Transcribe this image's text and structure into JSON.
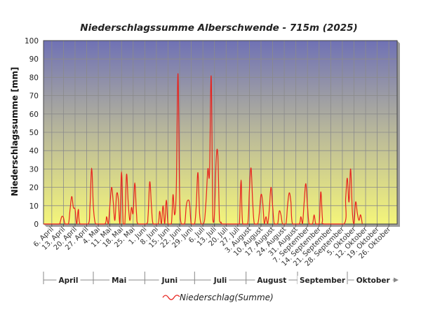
{
  "chart_data": {
    "type": "line",
    "title": "Niederschlagssumme Alberschwende - 715m (2025)",
    "ylabel": "Niederschlagssumme [mm]",
    "xlabel": "",
    "ylim": [
      0,
      100
    ],
    "yticks": [
      0,
      10,
      20,
      30,
      40,
      50,
      60,
      70,
      80,
      90,
      100
    ],
    "grid": true,
    "legend_position": "bottom-center",
    "colors": {
      "line": "#e8231e",
      "bg_top": "#6f71b5",
      "bg_bottom": "#f4f57a",
      "grid": "#8a8a8a"
    },
    "xrange": [
      "2025-04-01",
      "2025-10-31"
    ],
    "x_tick_labels": [
      {
        "date": "2025-04-06",
        "label": "6. April"
      },
      {
        "date": "2025-04-13",
        "label": "13. April"
      },
      {
        "date": "2025-04-20",
        "label": "20. April"
      },
      {
        "date": "2025-04-27",
        "label": "27. April"
      },
      {
        "date": "2025-05-04",
        "label": "4. Mai"
      },
      {
        "date": "2025-05-11",
        "label": "11. Mai"
      },
      {
        "date": "2025-05-18",
        "label": "18. Mai"
      },
      {
        "date": "2025-05-25",
        "label": "25. Mai"
      },
      {
        "date": "2025-06-01",
        "label": "1. Juni"
      },
      {
        "date": "2025-06-08",
        "label": "8. Juni"
      },
      {
        "date": "2025-06-15",
        "label": "15. Juni"
      },
      {
        "date": "2025-06-22",
        "label": "22. Juni"
      },
      {
        "date": "2025-06-29",
        "label": "29. Juni"
      },
      {
        "date": "2025-07-06",
        "label": "6. Juli"
      },
      {
        "date": "2025-07-13",
        "label": "13. Juli"
      },
      {
        "date": "2025-07-20",
        "label": "20. Juli"
      },
      {
        "date": "2025-07-27",
        "label": "27. Juli"
      },
      {
        "date": "2025-08-03",
        "label": "3. August"
      },
      {
        "date": "2025-08-10",
        "label": "10. August"
      },
      {
        "date": "2025-08-17",
        "label": "17. August"
      },
      {
        "date": "2025-08-24",
        "label": "24. August"
      },
      {
        "date": "2025-08-31",
        "label": "31. August"
      },
      {
        "date": "2025-09-07",
        "label": "7. September"
      },
      {
        "date": "2025-09-14",
        "label": "14. September"
      },
      {
        "date": "2025-09-21",
        "label": "21. September"
      },
      {
        "date": "2025-09-28",
        "label": "28. September"
      },
      {
        "date": "2025-10-05",
        "label": "5. Oktober"
      },
      {
        "date": "2025-10-12",
        "label": "12. Oktober"
      },
      {
        "date": "2025-10-19",
        "label": "19. Oktober"
      },
      {
        "date": "2025-10-26",
        "label": "26. Oktober"
      }
    ],
    "months": [
      {
        "label": "April",
        "start": "2025-04-01",
        "end": "2025-04-30"
      },
      {
        "label": "Mai",
        "start": "2025-05-01",
        "end": "2025-05-31"
      },
      {
        "label": "Juni",
        "start": "2025-06-01",
        "end": "2025-06-30"
      },
      {
        "label": "Juli",
        "start": "2025-07-01",
        "end": "2025-07-31"
      },
      {
        "label": "August",
        "start": "2025-08-01",
        "end": "2025-08-31"
      },
      {
        "label": "September",
        "start": "2025-09-01",
        "end": "2025-09-30"
      },
      {
        "label": "Oktober",
        "start": "2025-10-01",
        "end": "2025-10-31"
      }
    ],
    "series": [
      {
        "name": "Niederschlag(Summe)",
        "points": [
          [
            "2025-04-01",
            0
          ],
          [
            "2025-04-10",
            0
          ],
          [
            "2025-04-11",
            1
          ],
          [
            "2025-04-12",
            4
          ],
          [
            "2025-04-13",
            3.5
          ],
          [
            "2025-04-14",
            0
          ],
          [
            "2025-04-16",
            0
          ],
          [
            "2025-04-17",
            8
          ],
          [
            "2025-04-18",
            15
          ],
          [
            "2025-04-19",
            9
          ],
          [
            "2025-04-20",
            8
          ],
          [
            "2025-04-21",
            0
          ],
          [
            "2025-04-22",
            8
          ],
          [
            "2025-04-23",
            0
          ],
          [
            "2025-04-28",
            0
          ],
          [
            "2025-04-29",
            10
          ],
          [
            "2025-04-30",
            30.5
          ],
          [
            "2025-05-01",
            10
          ],
          [
            "2025-05-02",
            1
          ],
          [
            "2025-05-03",
            0
          ],
          [
            "2025-05-08",
            0
          ],
          [
            "2025-05-09",
            4
          ],
          [
            "2025-05-10",
            0
          ],
          [
            "2025-05-11",
            10
          ],
          [
            "2025-05-12",
            20
          ],
          [
            "2025-05-13",
            12
          ],
          [
            "2025-05-14",
            2
          ],
          [
            "2025-05-15",
            16
          ],
          [
            "2025-05-16",
            14
          ],
          [
            "2025-05-17",
            0
          ],
          [
            "2025-05-18",
            28.5
          ],
          [
            "2025-05-19",
            0
          ],
          [
            "2025-05-20",
            0
          ],
          [
            "2025-05-21",
            27
          ],
          [
            "2025-05-22",
            12
          ],
          [
            "2025-05-23",
            2
          ],
          [
            "2025-05-24",
            9
          ],
          [
            "2025-05-25",
            6
          ],
          [
            "2025-05-26",
            22.5
          ],
          [
            "2025-05-27",
            6
          ],
          [
            "2025-05-28",
            0
          ],
          [
            "2025-06-02",
            0
          ],
          [
            "2025-06-03",
            5
          ],
          [
            "2025-06-04",
            23
          ],
          [
            "2025-06-05",
            10
          ],
          [
            "2025-06-06",
            0
          ],
          [
            "2025-06-09",
            0
          ],
          [
            "2025-06-10",
            7
          ],
          [
            "2025-06-11",
            0
          ],
          [
            "2025-06-12",
            10
          ],
          [
            "2025-06-13",
            0
          ],
          [
            "2025-06-14",
            13
          ],
          [
            "2025-06-15",
            0
          ],
          [
            "2025-06-17",
            0
          ],
          [
            "2025-06-18",
            16
          ],
          [
            "2025-06-19",
            5
          ],
          [
            "2025-06-20",
            20
          ],
          [
            "2025-06-21",
            82
          ],
          [
            "2025-06-22",
            15
          ],
          [
            "2025-06-23",
            0
          ],
          [
            "2025-06-25",
            0
          ],
          [
            "2025-06-26",
            10
          ],
          [
            "2025-06-27",
            13
          ],
          [
            "2025-06-28",
            11
          ],
          [
            "2025-06-29",
            0
          ],
          [
            "2025-07-01",
            0
          ],
          [
            "2025-07-02",
            10
          ],
          [
            "2025-07-03",
            28
          ],
          [
            "2025-07-04",
            6
          ],
          [
            "2025-07-05",
            0
          ],
          [
            "2025-07-06",
            0
          ],
          [
            "2025-07-07",
            2
          ],
          [
            "2025-07-08",
            14
          ],
          [
            "2025-07-09",
            30
          ],
          [
            "2025-07-10",
            28
          ],
          [
            "2025-07-11",
            80.5
          ],
          [
            "2025-07-12",
            2
          ],
          [
            "2025-07-13",
            6
          ],
          [
            "2025-07-14",
            35
          ],
          [
            "2025-07-15",
            37.5
          ],
          [
            "2025-07-16",
            2
          ],
          [
            "2025-07-17",
            1
          ],
          [
            "2025-07-18",
            0
          ],
          [
            "2025-07-27",
            0
          ],
          [
            "2025-07-28",
            0
          ],
          [
            "2025-07-29",
            24
          ],
          [
            "2025-07-30",
            0
          ],
          [
            "2025-08-02",
            0
          ],
          [
            "2025-08-03",
            18
          ],
          [
            "2025-08-04",
            30.5
          ],
          [
            "2025-08-05",
            12
          ],
          [
            "2025-08-06",
            0
          ],
          [
            "2025-08-08",
            0
          ],
          [
            "2025-08-09",
            6
          ],
          [
            "2025-08-10",
            16
          ],
          [
            "2025-08-11",
            12
          ],
          [
            "2025-08-12",
            0
          ],
          [
            "2025-08-13",
            4
          ],
          [
            "2025-08-14",
            0
          ],
          [
            "2025-08-15",
            8
          ],
          [
            "2025-08-16",
            20
          ],
          [
            "2025-08-17",
            10
          ],
          [
            "2025-08-18",
            0
          ],
          [
            "2025-08-20",
            0
          ],
          [
            "2025-08-21",
            7
          ],
          [
            "2025-08-22",
            5
          ],
          [
            "2025-08-23",
            0
          ],
          [
            "2025-08-25",
            0
          ],
          [
            "2025-08-26",
            10
          ],
          [
            "2025-08-27",
            17
          ],
          [
            "2025-08-28",
            12
          ],
          [
            "2025-08-29",
            0
          ],
          [
            "2025-09-02",
            0
          ],
          [
            "2025-09-03",
            4
          ],
          [
            "2025-09-04",
            0
          ],
          [
            "2025-09-05",
            12
          ],
          [
            "2025-09-06",
            22
          ],
          [
            "2025-09-07",
            10
          ],
          [
            "2025-09-08",
            0
          ],
          [
            "2025-09-10",
            0
          ],
          [
            "2025-09-11",
            5
          ],
          [
            "2025-09-12",
            0
          ],
          [
            "2025-09-14",
            0
          ],
          [
            "2025-09-15",
            17.5
          ],
          [
            "2025-09-16",
            3
          ],
          [
            "2025-09-17",
            0
          ],
          [
            "2025-09-29",
            0
          ],
          [
            "2025-09-30",
            14
          ],
          [
            "2025-10-01",
            25
          ],
          [
            "2025-10-02",
            12
          ],
          [
            "2025-10-03",
            30
          ],
          [
            "2025-10-04",
            7
          ],
          [
            "2025-10-05",
            0
          ],
          [
            "2025-10-06",
            12
          ],
          [
            "2025-10-07",
            6
          ],
          [
            "2025-10-08",
            2
          ],
          [
            "2025-10-09",
            5
          ],
          [
            "2025-10-10",
            0
          ]
        ]
      }
    ]
  }
}
